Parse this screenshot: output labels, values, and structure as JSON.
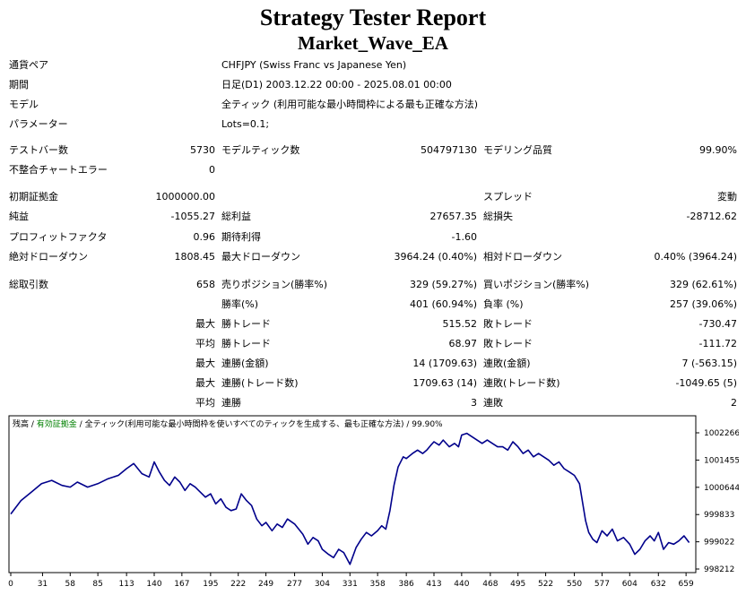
{
  "header": {
    "title": "Strategy Tester Report",
    "subtitle": "Market_Wave_EA"
  },
  "info": [
    {
      "label": "通貨ペア",
      "value": "CHFJPY (Swiss Franc vs Japanese Yen)"
    },
    {
      "label": "期間",
      "value": "日足(D1) 2003.12.22 00:00 - 2025.08.01 00:00"
    },
    {
      "label": "モデル",
      "value": "全ティック (利用可能な最小時間枠による最も正確な方法)"
    },
    {
      "label": "パラメーター",
      "value": "Lots=0.1;"
    }
  ],
  "stats": {
    "bars_label": "テストバー数",
    "bars": "5730",
    "ticks_label": "モデルティック数",
    "ticks": "504797130",
    "quality_label": "モデリング品質",
    "quality": "99.90%",
    "mismatch_label": "不整合チャートエラー",
    "mismatch": "0",
    "deposit_label": "初期証拠金",
    "deposit": "1000000.00",
    "spread_label": "スプレッド",
    "spread": "変動",
    "net_label": "純益",
    "net": "-1055.27",
    "gross_profit_label": "総利益",
    "gross_profit": "27657.35",
    "gross_loss_label": "総損失",
    "gross_loss": "-28712.62",
    "pf_label": "プロフィットファクタ",
    "pf": "0.96",
    "payoff_label": "期待利得",
    "payoff": "-1.60",
    "abs_dd_label": "絶対ドローダウン",
    "abs_dd": "1808.45",
    "max_dd_label": "最大ドローダウン",
    "max_dd": "3964.24 (0.40%)",
    "rel_dd_label": "相対ドローダウン",
    "rel_dd": "0.40% (3964.24)",
    "total_label": "総取引数",
    "total": "658",
    "short_label": "売りポジション(勝率%)",
    "short": "329 (59.27%)",
    "long_label": "買いポジション(勝率%)",
    "long": "329 (62.61%)",
    "win_label": "勝率(%)",
    "win": "401 (60.94%)",
    "loss_label": "負率 (%)",
    "loss": "257 (39.06%)",
    "max_label": "最大",
    "avg_label": "平均",
    "largest_win_label": "勝トレード",
    "largest_win": "515.52",
    "largest_loss_label": "敗トレード",
    "largest_loss": "-730.47",
    "avg_win_label": "勝トレード",
    "avg_win": "68.97",
    "avg_loss_label": "敗トレード",
    "avg_loss": "-111.72",
    "max_consec_win_label": "連勝(金額)",
    "max_consec_win": "14 (1709.63)",
    "max_consec_loss_label": "連敗(金額)",
    "max_consec_loss": "7 (-563.15)",
    "max_consec_profit_label": "連勝(トレード数)",
    "max_consec_profit": "1709.63 (14)",
    "max_consec_lossamt_label": "連敗(トレード数)",
    "max_consec_lossamt": "-1049.65 (5)",
    "avg_consec_win_label": "連勝",
    "avg_consec_win": "3",
    "avg_consec_loss_label": "連敗",
    "avg_consec_loss": "2"
  },
  "chart_legend": {
    "balance": "残高",
    "sep1": " / ",
    "equity": "有効証拠金",
    "sep2": " / ",
    "model": "全ティック(利用可能な最小時間枠を使いすべてのティックを生成する、最も正確な方法)",
    "sep3": " / ",
    "quality": "99.90%",
    "balance_color": "#000000",
    "equity_color": "#008000"
  },
  "chart_data": {
    "type": "line",
    "x_ticks": [
      "0",
      "31",
      "58",
      "85",
      "113",
      "140",
      "167",
      "195",
      "222",
      "249",
      "277",
      "304",
      "331",
      "358",
      "386",
      "413",
      "440",
      "468",
      "495",
      "522",
      "550",
      "577",
      "604",
      "632",
      "659"
    ],
    "y_ticks": [
      "1002266",
      "1001455",
      "1000644",
      "999833",
      "999022",
      "998212"
    ],
    "ylim": [
      998212,
      1002266
    ],
    "xlim": [
      0,
      665
    ],
    "line_color": "#00008b",
    "series": [
      {
        "values": [
          [
            0,
            999850
          ],
          [
            10,
            1000250
          ],
          [
            20,
            1000500
          ],
          [
            30,
            1000750
          ],
          [
            40,
            1000850
          ],
          [
            50,
            1000700
          ],
          [
            58,
            1000650
          ],
          [
            65,
            1000800
          ],
          [
            75,
            1000650
          ],
          [
            85,
            1000750
          ],
          [
            95,
            1000900
          ],
          [
            105,
            1001000
          ],
          [
            113,
            1001200
          ],
          [
            120,
            1001350
          ],
          [
            128,
            1001050
          ],
          [
            135,
            1000950
          ],
          [
            140,
            1001400
          ],
          [
            145,
            1001100
          ],
          [
            150,
            1000850
          ],
          [
            155,
            1000700
          ],
          [
            160,
            1000950
          ],
          [
            165,
            1000800
          ],
          [
            170,
            1000550
          ],
          [
            175,
            1000750
          ],
          [
            180,
            1000650
          ],
          [
            185,
            1000500
          ],
          [
            190,
            1000350
          ],
          [
            195,
            1000450
          ],
          [
            200,
            1000150
          ],
          [
            205,
            1000300
          ],
          [
            210,
            1000050
          ],
          [
            215,
            999950
          ],
          [
            220,
            1000000
          ],
          [
            225,
            1000450
          ],
          [
            230,
            1000250
          ],
          [
            235,
            1000100
          ],
          [
            240,
            999700
          ],
          [
            245,
            999500
          ],
          [
            249,
            999600
          ],
          [
            255,
            999350
          ],
          [
            260,
            999550
          ],
          [
            265,
            999450
          ],
          [
            270,
            999700
          ],
          [
            277,
            999550
          ],
          [
            285,
            999250
          ],
          [
            290,
            998950
          ],
          [
            295,
            999150
          ],
          [
            300,
            999050
          ],
          [
            304,
            998800
          ],
          [
            310,
            998650
          ],
          [
            315,
            998550
          ],
          [
            320,
            998800
          ],
          [
            325,
            998700
          ],
          [
            331,
            998350
          ],
          [
            337,
            998850
          ],
          [
            342,
            999100
          ],
          [
            347,
            999300
          ],
          [
            352,
            999200
          ],
          [
            358,
            999350
          ],
          [
            362,
            999500
          ],
          [
            366,
            999400
          ],
          [
            370,
            999950
          ],
          [
            374,
            1000700
          ],
          [
            378,
            1001250
          ],
          [
            383,
            1001550
          ],
          [
            386,
            1001500
          ],
          [
            392,
            1001650
          ],
          [
            397,
            1001750
          ],
          [
            402,
            1001650
          ],
          [
            406,
            1001750
          ],
          [
            410,
            1001900
          ],
          [
            413,
            1002000
          ],
          [
            418,
            1001900
          ],
          [
            422,
            1002050
          ],
          [
            428,
            1001850
          ],
          [
            433,
            1001950
          ],
          [
            437,
            1001850
          ],
          [
            440,
            1002200
          ],
          [
            445,
            1002250
          ],
          [
            450,
            1002150
          ],
          [
            455,
            1002050
          ],
          [
            460,
            1001950
          ],
          [
            465,
            1002050
          ],
          [
            470,
            1001950
          ],
          [
            475,
            1001850
          ],
          [
            480,
            1001850
          ],
          [
            485,
            1001750
          ],
          [
            490,
            1002000
          ],
          [
            495,
            1001850
          ],
          [
            500,
            1001650
          ],
          [
            505,
            1001750
          ],
          [
            510,
            1001550
          ],
          [
            515,
            1001650
          ],
          [
            520,
            1001550
          ],
          [
            525,
            1001450
          ],
          [
            530,
            1001300
          ],
          [
            535,
            1001400
          ],
          [
            540,
            1001200
          ],
          [
            545,
            1001100
          ],
          [
            550,
            1001000
          ],
          [
            555,
            1000750
          ],
          [
            558,
            1000200
          ],
          [
            561,
            999650
          ],
          [
            564,
            999300
          ],
          [
            568,
            999100
          ],
          [
            572,
            999000
          ],
          [
            577,
            999350
          ],
          [
            582,
            999200
          ],
          [
            587,
            999400
          ],
          [
            592,
            999050
          ],
          [
            598,
            999150
          ],
          [
            604,
            998950
          ],
          [
            609,
            998650
          ],
          [
            614,
            998800
          ],
          [
            619,
            999050
          ],
          [
            624,
            999200
          ],
          [
            628,
            999050
          ],
          [
            632,
            999300
          ],
          [
            637,
            998800
          ],
          [
            642,
            999000
          ],
          [
            647,
            998950
          ],
          [
            652,
            999050
          ],
          [
            657,
            999200
          ],
          [
            662,
            999000
          ]
        ]
      }
    ]
  }
}
